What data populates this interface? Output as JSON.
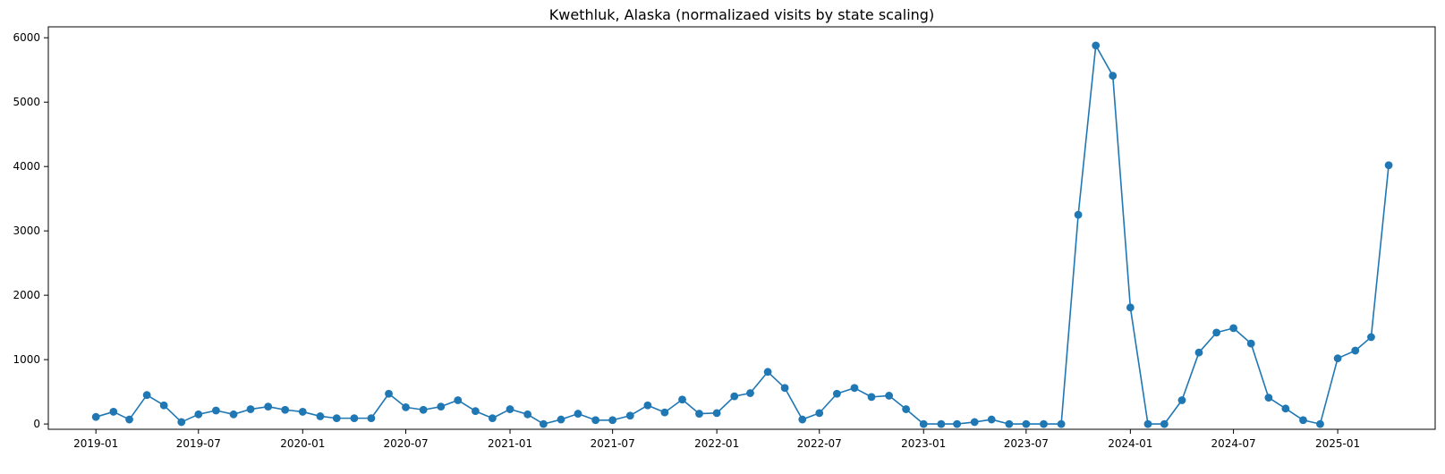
{
  "chart_data": {
    "type": "line",
    "title": "Kwethluk, Alaska (normalizaed visits by state scaling)",
    "xlabel": "",
    "ylabel": "",
    "marker": "circle",
    "grid": false,
    "legend": "none",
    "color": "#1f77b4",
    "xlim": [
      "2018-10-09",
      "2025-06-22"
    ],
    "ylim": [
      -82,
      6170
    ],
    "x_ticks": [
      "2019-01",
      "2019-07",
      "2020-01",
      "2020-07",
      "2021-01",
      "2021-07",
      "2022-01",
      "2022-07",
      "2023-01",
      "2023-07",
      "2024-01",
      "2024-07",
      "2025-01"
    ],
    "y_ticks": [
      0,
      1000,
      2000,
      3000,
      4000,
      5000,
      6000
    ],
    "series": [
      {
        "x": [
          "2019-01-01",
          "2019-02-01",
          "2019-03-01",
          "2019-04-01",
          "2019-05-01",
          "2019-06-01",
          "2019-07-01",
          "2019-08-01",
          "2019-09-01",
          "2019-10-01",
          "2019-11-01",
          "2019-12-01",
          "2020-01-01",
          "2020-02-01",
          "2020-03-01",
          "2020-04-01",
          "2020-05-01",
          "2020-06-01",
          "2020-07-01",
          "2020-08-01",
          "2020-09-01",
          "2020-10-01",
          "2020-11-01",
          "2020-12-01",
          "2021-01-01",
          "2021-02-01",
          "2021-03-01",
          "2021-04-01",
          "2021-05-01",
          "2021-06-01",
          "2021-07-01",
          "2021-08-01",
          "2021-09-01",
          "2021-10-01",
          "2021-11-01",
          "2021-12-01",
          "2022-01-01",
          "2022-02-01",
          "2022-03-01",
          "2022-04-01",
          "2022-05-01",
          "2022-06-01",
          "2022-07-01",
          "2022-08-01",
          "2022-09-01",
          "2022-10-01",
          "2022-11-01",
          "2022-12-01",
          "2023-01-01",
          "2023-02-01",
          "2023-03-01",
          "2023-04-01",
          "2023-05-01",
          "2023-06-01",
          "2023-07-01",
          "2023-08-01",
          "2023-09-01",
          "2023-10-01",
          "2023-11-01",
          "2023-12-01",
          "2024-01-01",
          "2024-02-01",
          "2024-03-01",
          "2024-04-01",
          "2024-05-01",
          "2024-06-01",
          "2024-07-01",
          "2024-08-01",
          "2024-09-01",
          "2024-10-01",
          "2024-11-01",
          "2024-12-01",
          "2025-01-01",
          "2025-02-01",
          "2025-03-01",
          "2025-04-01"
        ],
        "y": [
          110,
          190,
          70,
          450,
          290,
          30,
          150,
          210,
          150,
          230,
          270,
          220,
          190,
          120,
          90,
          90,
          90,
          470,
          260,
          220,
          270,
          370,
          200,
          90,
          230,
          150,
          0,
          70,
          160,
          60,
          60,
          130,
          290,
          180,
          380,
          160,
          170,
          430,
          480,
          810,
          560,
          70,
          170,
          470,
          560,
          420,
          440,
          230,
          0,
          0,
          0,
          30,
          70,
          0,
          0,
          0,
          0,
          3250,
          5880,
          5410,
          1810,
          0,
          0,
          370,
          1110,
          1420,
          1490,
          1250,
          410,
          240,
          60,
          0,
          1020,
          1140,
          1350,
          4020
        ]
      }
    ]
  }
}
